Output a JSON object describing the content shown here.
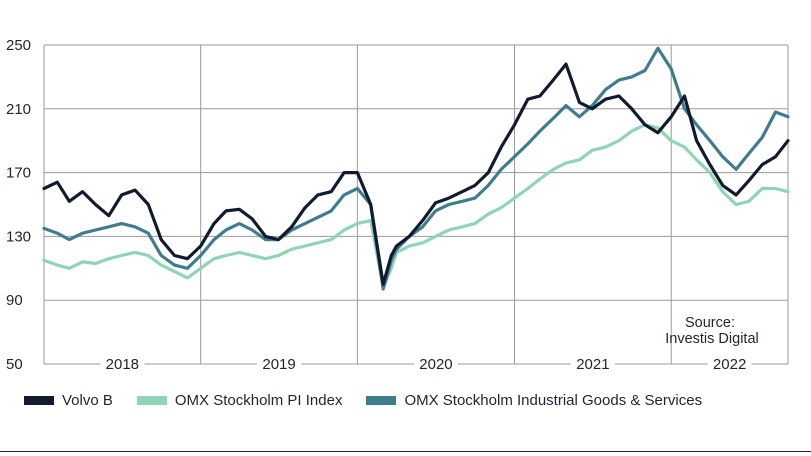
{
  "chart_data": {
    "type": "line",
    "title": "",
    "xlabel": "",
    "ylabel": "",
    "ylim": [
      50,
      250
    ],
    "y_ticks": [
      "250",
      "210",
      "170",
      "130",
      "90",
      "50"
    ],
    "x_ticks": [
      "2018",
      "2019",
      "2020",
      "2021",
      "2022"
    ],
    "xlim": [
      "2018-01-01",
      "2022-09-30"
    ],
    "grid": true,
    "legend_position": "bottom",
    "annotation": "Source:\nInvestis Digital",
    "colors": {
      "volvo": "#121a2e",
      "pi": "#8fd5b5",
      "industrial": "#3f7d8c"
    },
    "series": [
      {
        "name": "Volvo B",
        "x": [
          "2018-01-01",
          "2018-02-01",
          "2018-03-01",
          "2018-04-01",
          "2018-05-01",
          "2018-06-01",
          "2018-07-01",
          "2018-08-01",
          "2018-09-01",
          "2018-10-01",
          "2018-11-01",
          "2018-12-01",
          "2019-01-01",
          "2019-02-01",
          "2019-03-01",
          "2019-04-01",
          "2019-05-01",
          "2019-06-01",
          "2019-07-01",
          "2019-08-01",
          "2019-09-01",
          "2019-10-01",
          "2019-11-01",
          "2019-12-01",
          "2020-01-01",
          "2020-02-01",
          "2020-03-01",
          "2020-03-20",
          "2020-04-01",
          "2020-05-01",
          "2020-06-01",
          "2020-07-01",
          "2020-08-01",
          "2020-09-01",
          "2020-10-01",
          "2020-11-01",
          "2020-12-01",
          "2021-01-01",
          "2021-02-01",
          "2021-03-01",
          "2021-04-01",
          "2021-05-01",
          "2021-06-01",
          "2021-07-01",
          "2021-08-01",
          "2021-09-01",
          "2021-10-01",
          "2021-11-01",
          "2021-12-01",
          "2022-01-01",
          "2022-02-01",
          "2022-03-01",
          "2022-04-01",
          "2022-05-01",
          "2022-06-01",
          "2022-07-01",
          "2022-08-01",
          "2022-09-01",
          "2022-09-30"
        ],
        "values": [
          160,
          164,
          152,
          158,
          150,
          143,
          156,
          159,
          150,
          128,
          118,
          116,
          124,
          138,
          146,
          147,
          141,
          130,
          128,
          136,
          148,
          156,
          158,
          170,
          170,
          150,
          100,
          118,
          124,
          130,
          140,
          151,
          154,
          158,
          162,
          170,
          186,
          200,
          216,
          218,
          228,
          238,
          214,
          210,
          216,
          218,
          210,
          200,
          195,
          205,
          218,
          190,
          175,
          162,
          156,
          165,
          175,
          180,
          190
        ]
      },
      {
        "name": "OMX Stockholm PI Index",
        "x": [
          "2018-01-01",
          "2018-02-01",
          "2018-03-01",
          "2018-04-01",
          "2018-05-01",
          "2018-06-01",
          "2018-07-01",
          "2018-08-01",
          "2018-09-01",
          "2018-10-01",
          "2018-11-01",
          "2018-12-01",
          "2019-01-01",
          "2019-02-01",
          "2019-03-01",
          "2019-04-01",
          "2019-05-01",
          "2019-06-01",
          "2019-07-01",
          "2019-08-01",
          "2019-09-01",
          "2019-10-01",
          "2019-11-01",
          "2019-12-01",
          "2020-01-01",
          "2020-02-01",
          "2020-03-01",
          "2020-03-20",
          "2020-04-01",
          "2020-05-01",
          "2020-06-01",
          "2020-07-01",
          "2020-08-01",
          "2020-09-01",
          "2020-10-01",
          "2020-11-01",
          "2020-12-01",
          "2021-01-01",
          "2021-02-01",
          "2021-03-01",
          "2021-04-01",
          "2021-05-01",
          "2021-06-01",
          "2021-07-01",
          "2021-08-01",
          "2021-09-01",
          "2021-10-01",
          "2021-11-01",
          "2021-12-01",
          "2022-01-01",
          "2022-02-01",
          "2022-03-01",
          "2022-04-01",
          "2022-05-01",
          "2022-06-01",
          "2022-07-01",
          "2022-08-01",
          "2022-09-01",
          "2022-09-30"
        ],
        "values": [
          115,
          112,
          110,
          114,
          113,
          116,
          118,
          120,
          118,
          112,
          108,
          104,
          110,
          116,
          118,
          120,
          118,
          116,
          118,
          122,
          124,
          126,
          128,
          134,
          138,
          140,
          98,
          110,
          120,
          124,
          126,
          130,
          134,
          136,
          138,
          144,
          148,
          154,
          160,
          166,
          172,
          176,
          178,
          184,
          186,
          190,
          196,
          200,
          198,
          190,
          186,
          178,
          170,
          158,
          150,
          152,
          160,
          160,
          158
        ]
      },
      {
        "name": "OMX Stockholm Industrial Goods & Services",
        "x": [
          "2018-01-01",
          "2018-02-01",
          "2018-03-01",
          "2018-04-01",
          "2018-05-01",
          "2018-06-01",
          "2018-07-01",
          "2018-08-01",
          "2018-09-01",
          "2018-10-01",
          "2018-11-01",
          "2018-12-01",
          "2019-01-01",
          "2019-02-01",
          "2019-03-01",
          "2019-04-01",
          "2019-05-01",
          "2019-06-01",
          "2019-07-01",
          "2019-08-01",
          "2019-09-01",
          "2019-10-01",
          "2019-11-01",
          "2019-12-01",
          "2020-01-01",
          "2020-02-01",
          "2020-03-01",
          "2020-03-20",
          "2020-04-01",
          "2020-05-01",
          "2020-06-01",
          "2020-07-01",
          "2020-08-01",
          "2020-09-01",
          "2020-10-01",
          "2020-11-01",
          "2020-12-01",
          "2021-01-01",
          "2021-02-01",
          "2021-03-01",
          "2021-04-01",
          "2021-05-01",
          "2021-06-01",
          "2021-07-01",
          "2021-08-01",
          "2021-09-01",
          "2021-10-01",
          "2021-11-01",
          "2021-12-01",
          "2022-01-01",
          "2022-02-01",
          "2022-03-01",
          "2022-04-01",
          "2022-05-01",
          "2022-06-01",
          "2022-07-01",
          "2022-08-01",
          "2022-09-01",
          "2022-09-30"
        ],
        "values": [
          135,
          132,
          128,
          132,
          134,
          136,
          138,
          136,
          132,
          118,
          112,
          110,
          118,
          128,
          134,
          138,
          134,
          128,
          128,
          134,
          138,
          142,
          146,
          156,
          160,
          150,
          97,
          115,
          122,
          130,
          136,
          146,
          150,
          152,
          154,
          162,
          172,
          180,
          188,
          196,
          204,
          212,
          205,
          212,
          222,
          228,
          230,
          234,
          248,
          235,
          210,
          200,
          190,
          180,
          172,
          182,
          192,
          208,
          205
        ]
      }
    ]
  },
  "legend": {
    "volvo": "Volvo B",
    "pi": "OMX Stockholm PI Index",
    "industrial": "OMX Stockholm Industrial Goods & Services"
  }
}
